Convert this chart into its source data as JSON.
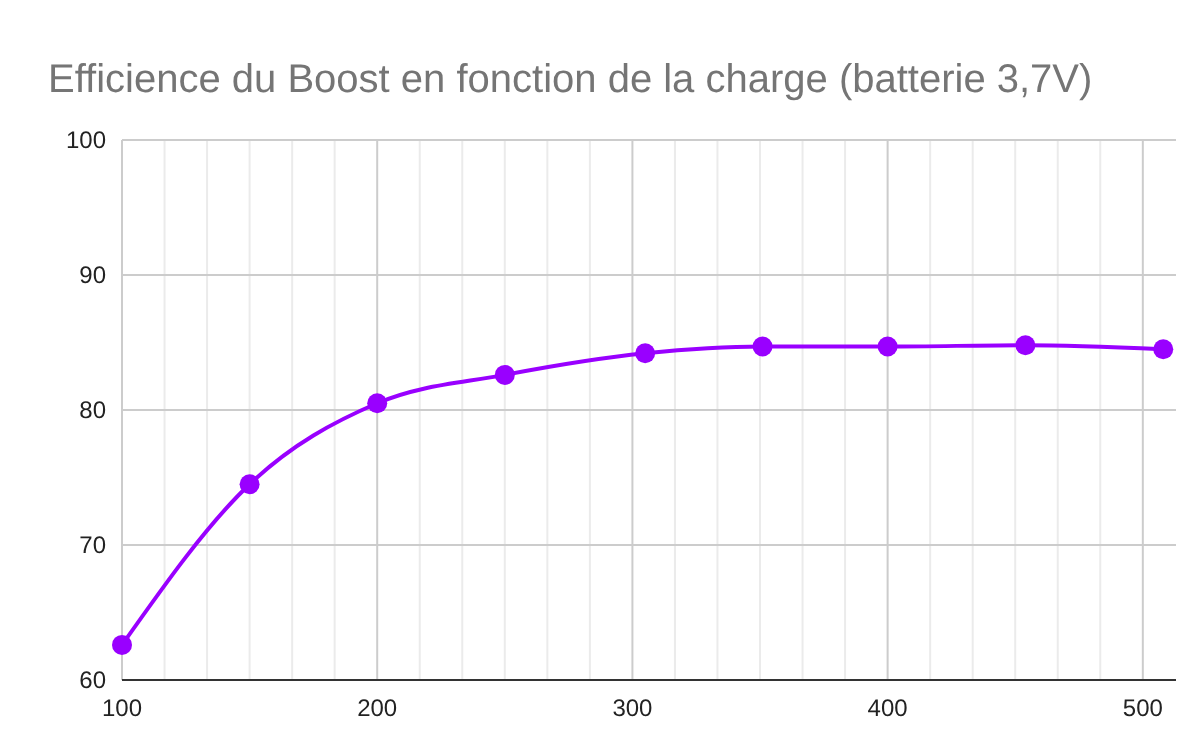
{
  "chart_data": {
    "type": "line",
    "title": "Efficience du Boost en fonction de la charge (batterie 3,7V)",
    "x": [
      100,
      150,
      200,
      250,
      305,
      351,
      400,
      454,
      508
    ],
    "series": [
      {
        "color": "#9900ff",
        "values": [
          62.6,
          74.5,
          80.5,
          82.6,
          84.2,
          84.7,
          84.7,
          84.8,
          84.5
        ]
      }
    ],
    "xlim": [
      100,
      513
    ],
    "xticks": [
      100,
      {
        "value": 116.67,
        "label": null
      },
      {
        "value": 133.33,
        "label": null
      },
      {
        "value": 150,
        "label": null
      },
      {
        "value": 166.67,
        "label": null
      },
      {
        "value": 183.33,
        "label": null
      },
      200,
      {
        "value": 216.67,
        "label": null
      },
      {
        "value": 233.33,
        "label": null
      },
      {
        "value": 250,
        "label": null
      },
      {
        "value": 266.67,
        "label": null
      },
      {
        "value": 283.33,
        "label": null
      },
      300,
      {
        "value": 316.67,
        "label": null
      },
      {
        "value": 333.33,
        "label": null
      },
      {
        "value": 350,
        "label": null
      },
      {
        "value": 366.67,
        "label": null
      },
      {
        "value": 383.33,
        "label": null
      },
      400,
      {
        "value": 416.67,
        "label": null
      },
      {
        "value": 433.33,
        "label": null
      },
      {
        "value": 450,
        "label": null
      },
      {
        "value": 466.67,
        "label": null
      },
      {
        "value": 483.33,
        "label": null
      },
      500
    ],
    "ylim": [
      60,
      100
    ],
    "yticks": [
      60,
      70,
      80,
      90,
      100
    ],
    "grid": true,
    "marker": "circle",
    "line_style": "solid"
  }
}
